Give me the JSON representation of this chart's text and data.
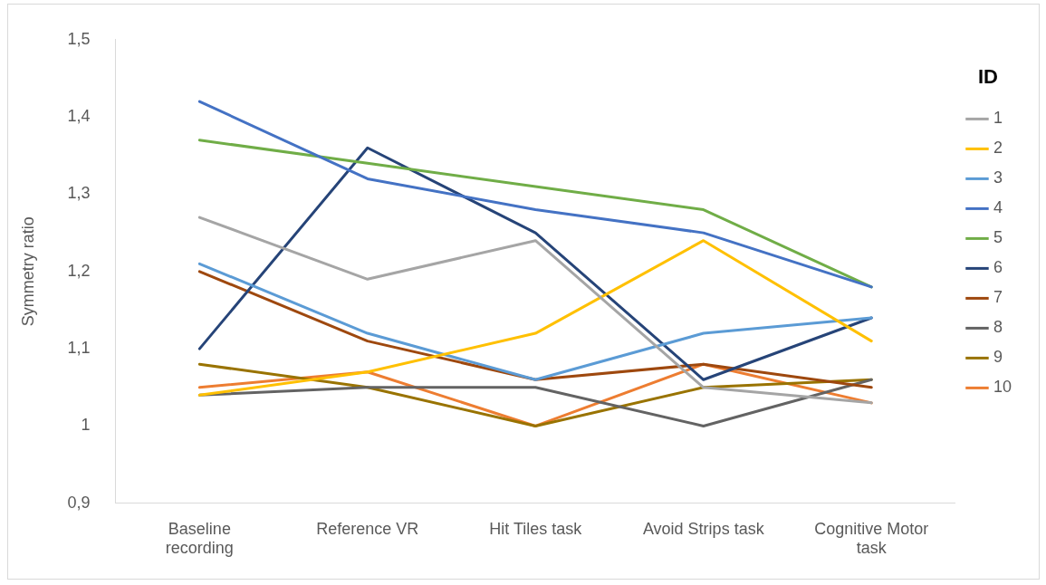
{
  "chart_data": {
    "type": "line",
    "ylabel": "Symmetry ratio",
    "legend_title": "ID",
    "legend": "right",
    "grid": false,
    "marker": "none",
    "line_style": "solid",
    "categories": [
      "Baseline recording",
      "Reference VR",
      "Hit Tiles task",
      "Avoid Strips task",
      "Cognitive Motor task"
    ],
    "ylim": [
      0.9,
      1.5
    ],
    "yticks": [
      {
        "value": 0.9,
        "label": "0,9"
      },
      {
        "value": 1,
        "label": "1"
      },
      {
        "value": 1.1,
        "label": "1,1"
      },
      {
        "value": 1.2,
        "label": "1,2"
      },
      {
        "value": 1.3,
        "label": "1,3"
      },
      {
        "value": 1.4,
        "label": "1,4"
      },
      {
        "value": 1.5,
        "label": "1,5"
      }
    ],
    "series": [
      {
        "name": "1",
        "color": "#a5a5a5",
        "values": [
          1.27,
          1.19,
          1.24,
          1.05,
          1.03
        ]
      },
      {
        "name": "2",
        "color": "#ffc000",
        "values": [
          1.04,
          1.07,
          1.12,
          1.24,
          1.11
        ]
      },
      {
        "name": "3",
        "color": "#5b9bd5",
        "values": [
          1.21,
          1.12,
          1.06,
          1.12,
          1.14
        ]
      },
      {
        "name": "4",
        "color": "#4472c4",
        "values": [
          1.42,
          1.32,
          1.28,
          1.25,
          1.18
        ]
      },
      {
        "name": "5",
        "color": "#70ad47",
        "values": [
          1.37,
          1.34,
          1.31,
          1.28,
          1.18
        ]
      },
      {
        "name": "6",
        "color": "#264478",
        "values": [
          1.1,
          1.36,
          1.25,
          1.06,
          1.14
        ]
      },
      {
        "name": "7",
        "color": "#9e480e",
        "values": [
          1.2,
          1.11,
          1.06,
          1.08,
          1.05
        ]
      },
      {
        "name": "8",
        "color": "#636363",
        "values": [
          1.04,
          1.05,
          1.05,
          1.0,
          1.06
        ]
      },
      {
        "name": "9",
        "color": "#997300",
        "values": [
          1.08,
          1.05,
          1.0,
          1.05,
          1.06
        ]
      },
      {
        "name": "10",
        "color": "#ed7d31",
        "values": [
          1.05,
          1.07,
          1.0,
          1.08,
          1.03
        ]
      }
    ]
  }
}
